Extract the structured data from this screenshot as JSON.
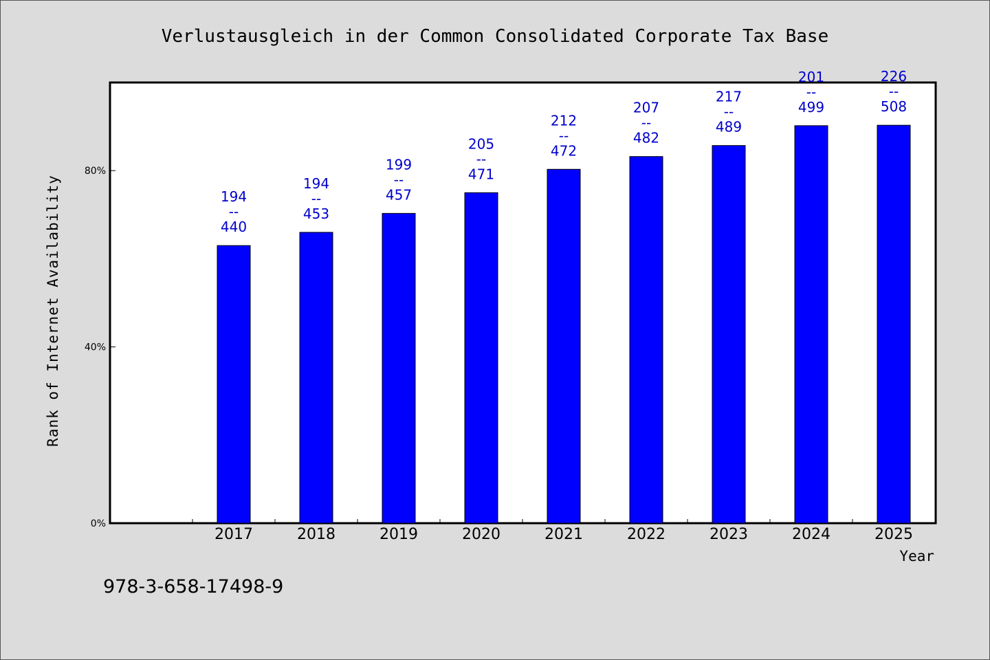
{
  "chart_data": {
    "type": "bar",
    "title": "Verlustausgleich in der Common Consolidated Corporate Tax Base",
    "xlabel": "Year",
    "ylabel": "Rank of Internet Availability",
    "categories": [
      "2017",
      "2018",
      "2019",
      "2020",
      "2021",
      "2022",
      "2023",
      "2024",
      "2025"
    ],
    "values": [
      63,
      66,
      70.3,
      75,
      80.3,
      83.2,
      85.7,
      90.2,
      90.3
    ],
    "bar_labels": [
      [
        "194",
        "--",
        "440"
      ],
      [
        "194",
        "--",
        "453"
      ],
      [
        "199",
        "--",
        "457"
      ],
      [
        "205",
        "--",
        "471"
      ],
      [
        "212",
        "--",
        "472"
      ],
      [
        "207",
        "--",
        "482"
      ],
      [
        "217",
        "--",
        "489"
      ],
      [
        "201",
        "--",
        "499"
      ],
      [
        "226",
        "--",
        "508"
      ]
    ],
    "ylim": [
      0,
      100
    ],
    "yticks": [
      0,
      40,
      80
    ],
    "ytick_labels": [
      "0%",
      "40%",
      "80%"
    ],
    "grid": false,
    "colors": {
      "bar": "#0000ff",
      "data_label": "#0000cc",
      "plot_bg": "#ffffff",
      "page_bg": "#dcdcdc"
    }
  },
  "footer": {
    "isbn": "978-3-658-17498-9"
  }
}
